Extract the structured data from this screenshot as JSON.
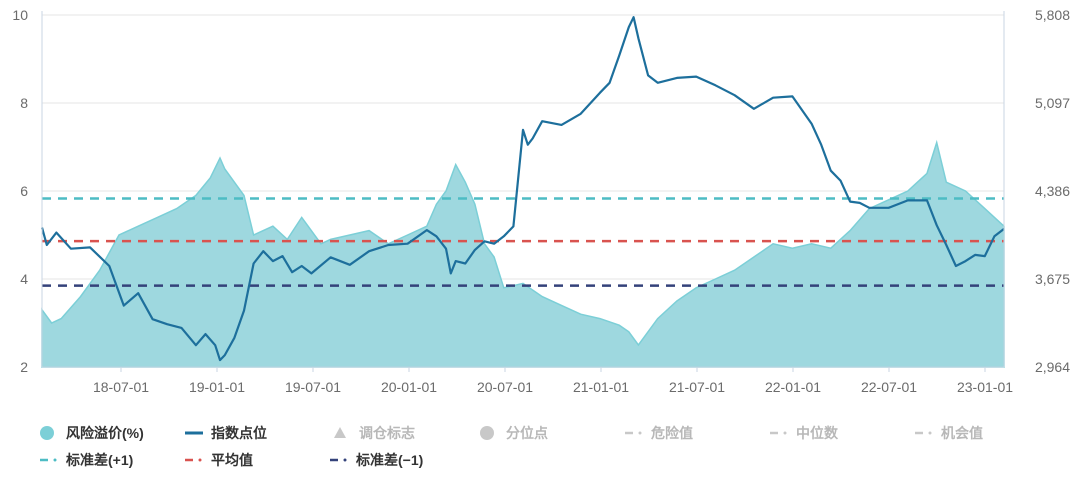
{
  "chart_data": {
    "type": "area+line",
    "x_ticks": [
      "18-07-01",
      "19-01-01",
      "19-07-01",
      "20-01-01",
      "20-07-01",
      "21-01-01",
      "21-07-01",
      "22-01-01",
      "22-07-01",
      "23-01-01"
    ],
    "y_left": {
      "min": 2,
      "max": 10,
      "ticks": [
        "2",
        "4",
        "6",
        "8",
        "10"
      ]
    },
    "y_right": {
      "min": 2964,
      "max": 5808,
      "ticks": [
        "2,964",
        "3,675",
        "4,386",
        "5,097",
        "5,808"
      ]
    },
    "reference_lines": {
      "std_plus_1": 5.83,
      "mean": 4.86,
      "std_minus_1": 3.85
    },
    "series": [
      {
        "name": "风险溢价(%)",
        "type": "area",
        "axis": "left",
        "x": [
          0,
          0.01,
          0.02,
          0.04,
          0.06,
          0.08,
          0.1,
          0.12,
          0.14,
          0.16,
          0.175,
          0.185,
          0.19,
          0.21,
          0.22,
          0.24,
          0.255,
          0.27,
          0.29,
          0.3,
          0.32,
          0.34,
          0.36,
          0.38,
          0.4,
          0.41,
          0.42,
          0.43,
          0.44,
          0.45,
          0.46,
          0.47,
          0.48,
          0.5,
          0.52,
          0.54,
          0.56,
          0.58,
          0.6,
          0.61,
          0.62,
          0.64,
          0.66,
          0.68,
          0.7,
          0.72,
          0.74,
          0.76,
          0.78,
          0.8,
          0.82,
          0.84,
          0.86,
          0.88,
          0.9,
          0.91,
          0.92,
          0.93,
          0.94,
          0.96,
          0.98,
          1.0
        ],
        "y": [
          3.3,
          3.0,
          3.1,
          3.6,
          4.2,
          5.0,
          5.2,
          5.4,
          5.6,
          5.9,
          6.3,
          6.75,
          6.5,
          5.9,
          5.0,
          5.2,
          4.9,
          5.4,
          4.8,
          4.9,
          5.0,
          5.1,
          4.8,
          5.0,
          5.2,
          5.7,
          6.0,
          6.6,
          6.2,
          5.7,
          4.8,
          4.5,
          3.8,
          3.9,
          3.6,
          3.4,
          3.2,
          3.1,
          2.95,
          2.8,
          2.5,
          3.1,
          3.5,
          3.8,
          4.0,
          4.2,
          4.5,
          4.8,
          4.7,
          4.8,
          4.7,
          5.1,
          5.6,
          5.8,
          6.0,
          6.2,
          6.4,
          7.1,
          6.2,
          6.0,
          5.6,
          5.2
        ]
      },
      {
        "name": "指数点位",
        "type": "line",
        "axis": "right",
        "x": [
          0,
          0.005,
          0.015,
          0.03,
          0.05,
          0.07,
          0.085,
          0.1,
          0.115,
          0.13,
          0.145,
          0.16,
          0.17,
          0.18,
          0.185,
          0.19,
          0.2,
          0.21,
          0.22,
          0.23,
          0.24,
          0.25,
          0.26,
          0.27,
          0.28,
          0.3,
          0.32,
          0.34,
          0.36,
          0.38,
          0.4,
          0.41,
          0.42,
          0.425,
          0.43,
          0.44,
          0.45,
          0.46,
          0.47,
          0.48,
          0.49,
          0.5,
          0.505,
          0.51,
          0.52,
          0.54,
          0.56,
          0.58,
          0.59,
          0.6,
          0.61,
          0.615,
          0.62,
          0.63,
          0.64,
          0.66,
          0.68,
          0.7,
          0.72,
          0.74,
          0.76,
          0.78,
          0.8,
          0.81,
          0.82,
          0.83,
          0.84,
          0.85,
          0.86,
          0.88,
          0.9,
          0.92,
          0.93,
          0.94,
          0.95,
          0.96,
          0.97,
          0.98,
          0.99,
          1.0
        ],
        "y": [
          4090,
          3950,
          4050,
          3920,
          3930,
          3780,
          3460,
          3560,
          3350,
          3310,
          3280,
          3140,
          3230,
          3140,
          3020,
          3060,
          3200,
          3420,
          3800,
          3900,
          3820,
          3860,
          3730,
          3780,
          3720,
          3850,
          3790,
          3900,
          3950,
          3960,
          4070,
          4020,
          3920,
          3720,
          3820,
          3800,
          3910,
          3980,
          3960,
          4020,
          4100,
          4880,
          4760,
          4810,
          4950,
          4920,
          5010,
          5180,
          5260,
          5480,
          5710,
          5790,
          5620,
          5320,
          5260,
          5300,
          5310,
          5240,
          5160,
          5050,
          5140,
          5150,
          4930,
          4760,
          4550,
          4470,
          4300,
          4290,
          4250,
          4250,
          4310,
          4310,
          4110,
          3950,
          3780,
          3820,
          3870,
          3860,
          4020,
          4080
        ]
      }
    ],
    "legend": [
      {
        "label": "风险溢价(%)",
        "marker": "circle",
        "color": "#7ccfd7",
        "active": true
      },
      {
        "label": "指数点位",
        "marker": "line",
        "color": "#1d6f9c",
        "active": true
      },
      {
        "label": "调仓标志",
        "marker": "triangle",
        "color": "#c8c8c8",
        "active": false
      },
      {
        "label": "分位点",
        "marker": "circle",
        "color": "#c8c8c8",
        "active": false
      },
      {
        "label": "危险值",
        "marker": "dashdot",
        "color": "#c8c8c8",
        "active": false
      },
      {
        "label": "中位数",
        "marker": "dashdot",
        "color": "#c8c8c8",
        "active": false
      },
      {
        "label": "机会值",
        "marker": "dashdot",
        "color": "#c8c8c8",
        "active": false
      },
      {
        "label": "标准差(+1)",
        "marker": "dashdot",
        "color": "#4dbcc4",
        "active": true
      },
      {
        "label": "平均值",
        "marker": "dashdot",
        "color": "#d9534f",
        "active": true
      },
      {
        "label": "标准差(−1)",
        "marker": "dashdot",
        "color": "#34427a",
        "active": true
      }
    ],
    "colors": {
      "area_fill": "#9ed8df",
      "area_stroke": "#7ccfd7",
      "index_line": "#1d6f9c",
      "std_plus": "#4dbcc4",
      "mean": "#d9534f",
      "std_minus": "#34427a",
      "grid": "#e6e6e6",
      "axis": "#c9d6e3",
      "active_text": "#333333",
      "inactive_text": "#b8b8b8"
    }
  }
}
